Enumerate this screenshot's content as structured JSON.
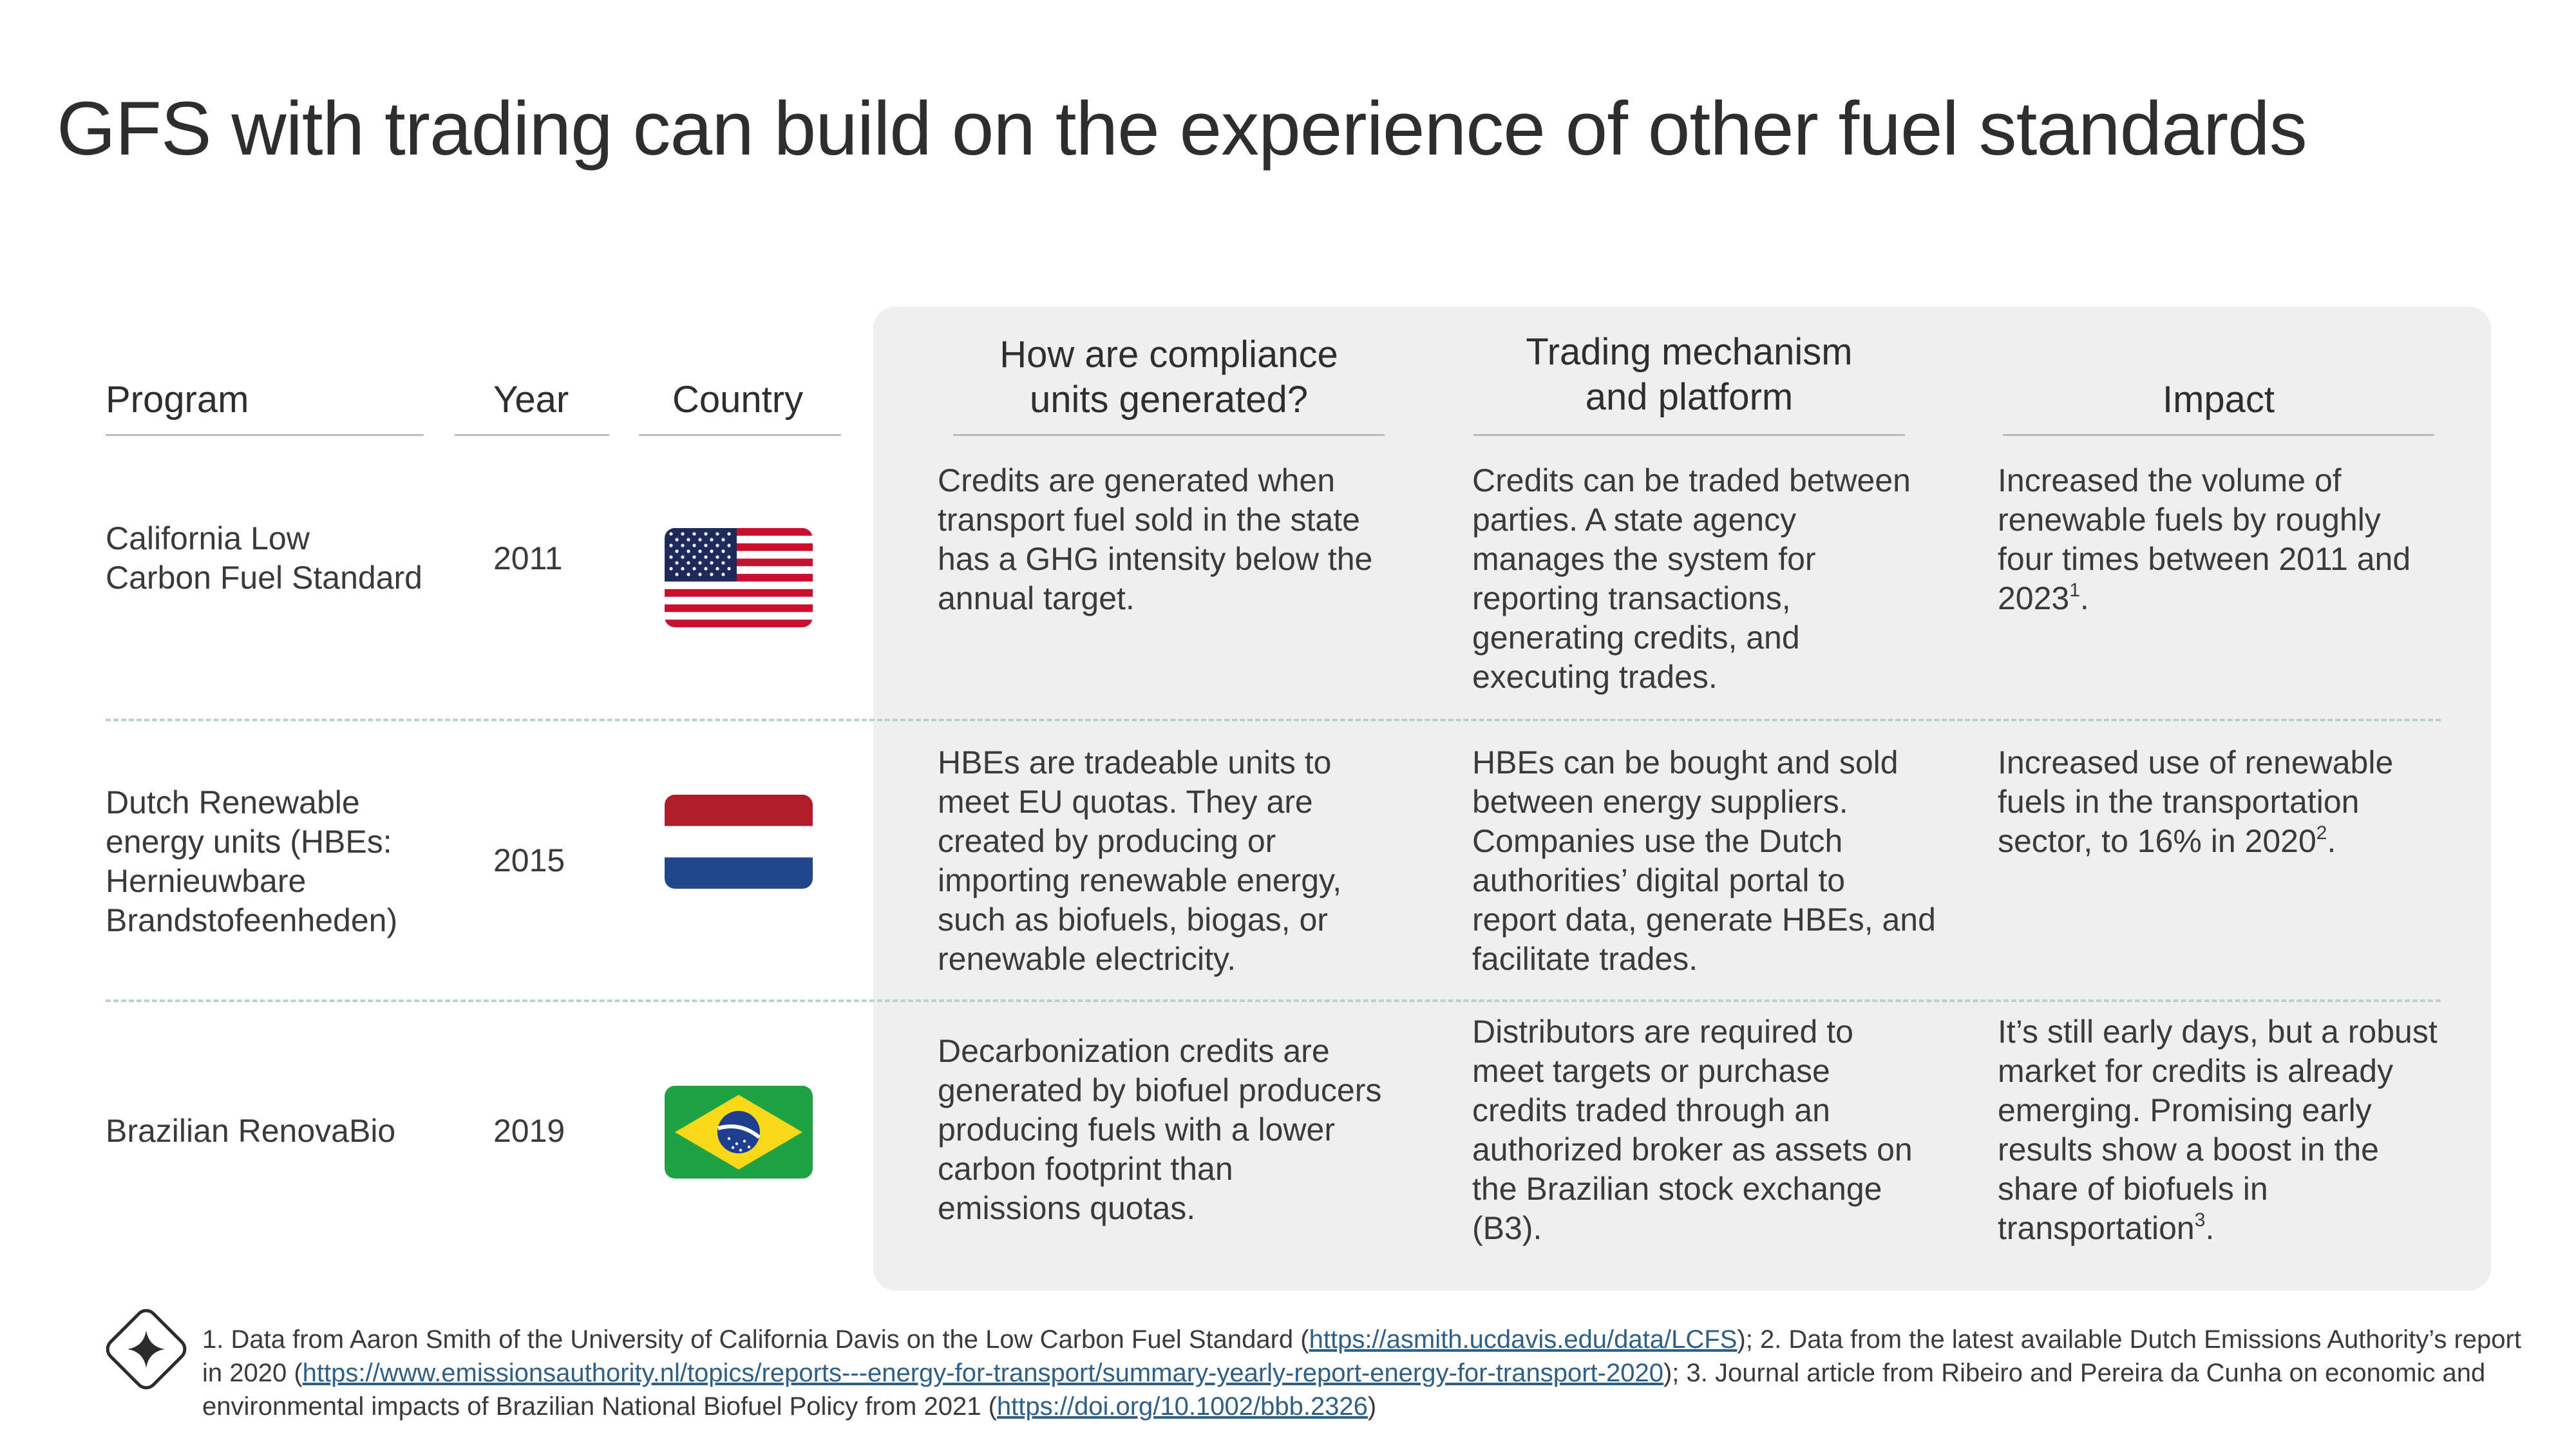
{
  "title": "GFS with trading can build on the experience of other fuel standards",
  "headers": {
    "program": "Program",
    "year": "Year",
    "country": "Country",
    "compliance_l1": "How are compliance",
    "compliance_l2": "units generated?",
    "trading_l1": "Trading mechanism",
    "trading_l2": "and platform",
    "impact": "Impact"
  },
  "rows": [
    {
      "program_lines": [
        "California Low",
        "Carbon Fuel Standard"
      ],
      "year": "2011",
      "flag": "us-flag-icon",
      "compliance": [
        "Credits are generated when",
        "transport fuel sold in the state",
        "has a GHG intensity below the",
        "annual target."
      ],
      "trading": [
        "Credits can be traded between",
        "parties. A state agency",
        "manages the system for",
        "reporting transactions,",
        "generating credits, and",
        "executing trades."
      ],
      "impact": [
        "Increased the volume of",
        "renewable fuels by roughly",
        "four times between 2011 and",
        "2023"
      ],
      "impact_sup": "1",
      "impact_end": "."
    },
    {
      "program_lines": [
        "Dutch Renewable",
        "energy units (HBEs:",
        "Hernieuwbare",
        "Brandstofeenheden)"
      ],
      "year": "2015",
      "flag": "netherlands-flag-icon",
      "compliance": [
        "HBEs are tradeable units to",
        "meet EU quotas. They are",
        "created by producing or",
        "importing renewable energy,",
        "such as biofuels, biogas, or",
        "renewable electricity."
      ],
      "trading": [
        "HBEs can be bought and sold",
        "between energy suppliers.",
        "Companies use the Dutch",
        "authorities’ digital portal to",
        "report data, generate HBEs, and",
        "facilitate trades."
      ],
      "impact": [
        "Increased use of renewable",
        "fuels in the transportation",
        "sector, to 16% in 2020"
      ],
      "impact_sup": "2",
      "impact_end": "."
    },
    {
      "program_lines": [
        "Brazilian RenovaBio"
      ],
      "year": "2019",
      "flag": "brazil-flag-icon",
      "compliance": [
        "Decarbonization credits are",
        "generated by biofuel producers",
        "producing fuels with a lower",
        "carbon footprint than",
        "emissions quotas."
      ],
      "trading": [
        "Distributors are required to",
        "meet targets or purchase",
        "credits traded through an",
        "authorized broker as assets on",
        "the Brazilian stock exchange",
        "(B3)."
      ],
      "impact": [
        "It’s still early days, but a robust",
        "market for credits is already",
        "emerging. Promising early",
        "results show a boost in the",
        "share of biofuels in",
        "transportation"
      ],
      "impact_sup": "3",
      "impact_end": "."
    }
  ],
  "footnote": {
    "t1": "1. Data from Aaron Smith of the University of California Davis on the Low Carbon Fuel Standard (",
    "link1": "https://asmith.ucdavis.edu/data/LCFS",
    "t2": "); 2. Data from the latest available Dutch Emissions Authority’s report in 2020 (",
    "link2": "https://www.emissionsauthority.nl/topics/reports---energy-for-transport/summary-yearly-report-energy-for-transport-2020",
    "t3": "); 3. Journal article from Ribeiro and Pereira da Cunha on economic and environmental impacts of Brazilian National Biofuel Policy from 2021 (",
    "link3": "https://doi.org/10.1002/bbb.2326",
    "t4": ")"
  },
  "badge_icon": "sparkle-diamond-icon"
}
